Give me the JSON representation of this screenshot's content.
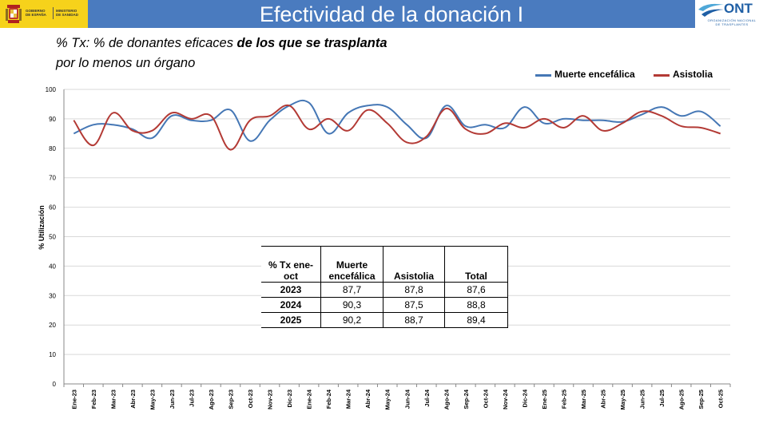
{
  "header": {
    "title": "Efectividad de la donación I",
    "logo_left": {
      "gobierno": "GOBIERNO\nDE ESPAÑA",
      "ministerio": "MINISTERIO\nDE SANIDAD"
    },
    "logo_right": {
      "name": "ONT",
      "subtitle": "ORGANIZACIÓN NACIONAL\nDE TRASPLANTES"
    },
    "bar_color": "#4a7bbf"
  },
  "subtitle": {
    "part1": "% Tx: % de donantes eficaces ",
    "part2": "de los que se trasplanta",
    "part3": " por lo menos un órgano"
  },
  "table": {
    "headers": [
      "% Tx ene-oct",
      "Muerte encefálica",
      "Asistolia",
      "Total"
    ],
    "rows": [
      {
        "year": "2023",
        "me": "87,7",
        "as": "87,8",
        "total": "87,6"
      },
      {
        "year": "2024",
        "me": "90,3",
        "as": "87,5",
        "total": "88,8"
      },
      {
        "year": "2025",
        "me": "90,2",
        "as": "88,7",
        "total": "89,4"
      }
    ]
  },
  "chart_data": {
    "type": "line",
    "title": "",
    "xlabel": "",
    "ylabel": "% Utilización",
    "ylim": [
      0,
      100
    ],
    "yticks": [
      0,
      10,
      20,
      30,
      40,
      50,
      60,
      70,
      80,
      90,
      100
    ],
    "grid": true,
    "legend_position": "top-right",
    "categories": [
      "Ene-23",
      "Feb-23",
      "Mar-23",
      "Abr-23",
      "May-23",
      "Jun-23",
      "Jul-23",
      "Ago-23",
      "Sep-23",
      "Oct-23",
      "Nov-23",
      "Dic-23",
      "Ene-24",
      "Feb-24",
      "Mar-24",
      "Abr-24",
      "May-24",
      "Jun-24",
      "Jul-24",
      "Ago-24",
      "Sep-24",
      "Oct-24",
      "Nov-24",
      "Dic-24",
      "Ene-25",
      "Feb-25",
      "Mar-25",
      "Abr-25",
      "May-25",
      "Jun-25",
      "Jul-25",
      "Ago-25",
      "Sep-25",
      "Oct-25"
    ],
    "series": [
      {
        "name": "Muerte encefálica",
        "color": "#4577b5",
        "values": [
          85.0,
          88.0,
          88.0,
          86.5,
          83.5,
          91.0,
          89.5,
          89.5,
          93.0,
          82.5,
          89.5,
          94.5,
          95.5,
          85.0,
          92.0,
          94.5,
          94.0,
          88.0,
          83.5,
          94.5,
          87.5,
          88.0,
          87.0,
          94.0,
          88.5,
          90.0,
          89.5,
          89.5,
          89.0,
          91.5,
          94.0,
          91.0,
          92.5,
          87.5
        ]
      },
      {
        "name": "Asistolia",
        "color": "#b33a35",
        "values": [
          89.5,
          81.0,
          92.0,
          86.0,
          86.0,
          92.0,
          90.0,
          91.0,
          79.5,
          89.5,
          91.0,
          94.5,
          86.5,
          90.0,
          86.0,
          93.0,
          88.5,
          82.0,
          84.0,
          93.5,
          86.5,
          85.0,
          88.5,
          87.0,
          90.0,
          87.0,
          91.0,
          86.0,
          88.5,
          92.5,
          91.0,
          87.5,
          87.0,
          85.0
        ]
      }
    ]
  }
}
